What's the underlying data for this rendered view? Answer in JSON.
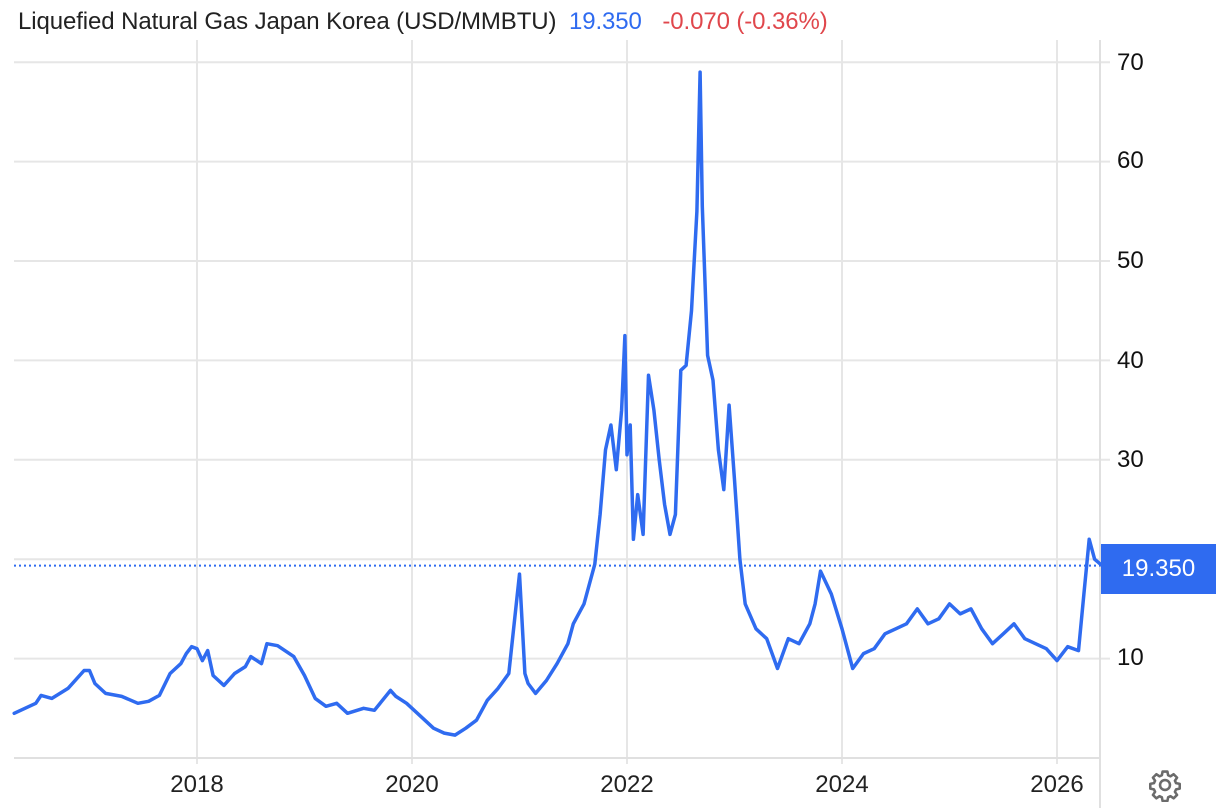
{
  "header": {
    "title": "Liquefied Natural Gas Japan Korea (USD/MMBTU)",
    "price": "19.350",
    "change": "-0.070 (-0.36%)"
  },
  "colors": {
    "line": "#2f6bf0",
    "price": "#2f6bf0",
    "change_negative": "#e0474c",
    "grid": "#e6e6e6",
    "badge_bg": "#2f6bf0",
    "badge_text": "#ffffff"
  },
  "badge": {
    "value": "19.350"
  },
  "y_axis": {
    "labels": [
      "70",
      "60",
      "50",
      "40",
      "30",
      "10"
    ]
  },
  "x_axis": {
    "labels": [
      "2018",
      "2020",
      "2022",
      "2024",
      "2026"
    ]
  },
  "icons": {
    "settings": "gear-icon"
  },
  "chart_data": {
    "type": "line",
    "title": "Liquefied Natural Gas Japan Korea (USD/MMBTU)",
    "xlabel": "",
    "ylabel": "USD/MMBTU",
    "ylim": [
      0,
      70
    ],
    "yticks": [
      10,
      20,
      30,
      40,
      50,
      60,
      70
    ],
    "xticks": [
      2018,
      2020,
      2022,
      2024,
      2026
    ],
    "xlim": [
      2016.3,
      2026.45
    ],
    "grid": true,
    "legend": "none",
    "last_value": 19.35,
    "last_value_line": 19.35,
    "series": [
      {
        "name": "LNG Japan Korea",
        "x": [
          2016.3,
          2016.4,
          2016.5,
          2016.55,
          2016.65,
          2016.8,
          2016.95,
          2017.0,
          2017.05,
          2017.15,
          2017.2,
          2017.3,
          2017.45,
          2017.55,
          2017.65,
          2017.75,
          2017.85,
          2017.9,
          2017.95,
          2018.0,
          2018.05,
          2018.1,
          2018.15,
          2018.25,
          2018.35,
          2018.45,
          2018.5,
          2018.6,
          2018.65,
          2018.75,
          2018.9,
          2019.0,
          2019.1,
          2019.2,
          2019.3,
          2019.4,
          2019.55,
          2019.65,
          2019.8,
          2019.85,
          2019.95,
          2020.1,
          2020.2,
          2020.3,
          2020.4,
          2020.5,
          2020.6,
          2020.7,
          2020.8,
          2020.9,
          2021.0,
          2021.05,
          2021.08,
          2021.15,
          2021.25,
          2021.35,
          2021.45,
          2021.5,
          2021.6,
          2021.7,
          2021.75,
          2021.8,
          2021.85,
          2021.9,
          2021.95,
          2021.98,
          2022.0,
          2022.03,
          2022.06,
          2022.1,
          2022.15,
          2022.2,
          2022.25,
          2022.3,
          2022.35,
          2022.4,
          2022.45,
          2022.5,
          2022.55,
          2022.6,
          2022.65,
          2022.68,
          2022.7,
          2022.75,
          2022.8,
          2022.85,
          2022.9,
          2022.95,
          2023.0,
          2023.05,
          2023.1,
          2023.2,
          2023.3,
          2023.4,
          2023.5,
          2023.6,
          2023.7,
          2023.75,
          2023.8,
          2023.9,
          2024.0,
          2024.1,
          2024.2,
          2024.3,
          2024.4,
          2024.5,
          2024.6,
          2024.7,
          2024.8,
          2024.9,
          2025.0,
          2025.1,
          2025.2,
          2025.3,
          2025.4,
          2025.5,
          2025.6,
          2025.7,
          2025.8,
          2025.9,
          2026.0,
          2026.1,
          2026.2,
          2026.25,
          2026.3,
          2026.35,
          2026.42
        ],
        "values": [
          4.5,
          5.0,
          5.5,
          6.3,
          6.0,
          7.0,
          8.8,
          8.8,
          7.5,
          6.5,
          6.4,
          6.2,
          5.5,
          5.7,
          6.3,
          8.5,
          9.5,
          10.5,
          11.2,
          11.0,
          9.8,
          10.8,
          8.3,
          7.3,
          8.5,
          9.2,
          10.2,
          9.5,
          11.5,
          11.3,
          10.2,
          8.3,
          6.0,
          5.2,
          5.5,
          4.5,
          5.0,
          4.8,
          6.8,
          6.2,
          5.5,
          4.0,
          3.0,
          2.5,
          2.3,
          3.0,
          3.8,
          5.8,
          7.0,
          8.5,
          18.5,
          8.5,
          7.5,
          6.5,
          7.8,
          9.5,
          11.5,
          13.5,
          15.5,
          19.5,
          24.5,
          31.0,
          33.5,
          29.0,
          35.0,
          42.5,
          30.5,
          33.5,
          22.0,
          26.5,
          22.5,
          38.5,
          35.0,
          30.0,
          25.5,
          22.5,
          24.5,
          39.0,
          39.5,
          45.0,
          55.0,
          69.0,
          55.5,
          40.5,
          38.0,
          31.0,
          27.0,
          35.5,
          28.0,
          20.0,
          15.5,
          13.0,
          12.0,
          9.0,
          12.0,
          11.5,
          13.5,
          15.5,
          18.8,
          16.5,
          13.0,
          9.0,
          10.5,
          11.0,
          12.5,
          13.0,
          13.5,
          15.0,
          13.5,
          14.0,
          15.5,
          14.5,
          15.0,
          13.0,
          11.5,
          12.5,
          13.5,
          12.0,
          11.5,
          11.0,
          9.8,
          11.2,
          10.8,
          16.5,
          22.0,
          20.0,
          19.35
        ]
      }
    ]
  }
}
